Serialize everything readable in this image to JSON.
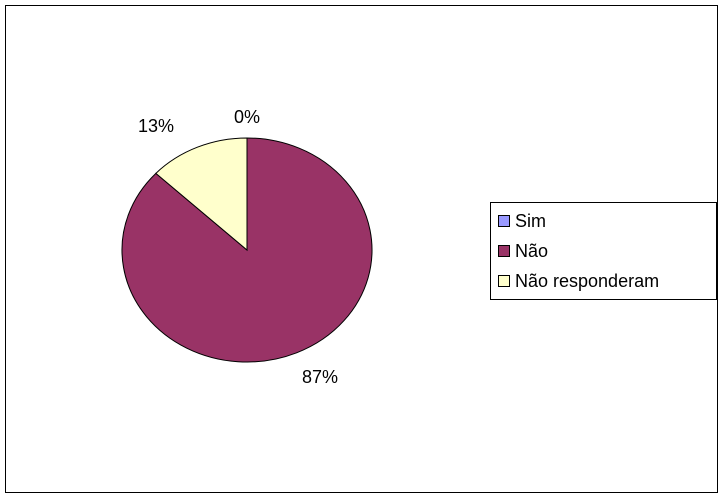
{
  "chart_data": {
    "type": "pie",
    "categories": [
      "Sim",
      "Não",
      "Não responderam"
    ],
    "values": [
      0,
      87,
      13
    ],
    "value_labels": [
      "0%",
      "87%",
      "13%"
    ],
    "colors": [
      "#9999ff",
      "#993366",
      "#ffffcc"
    ],
    "legend_position": "right"
  },
  "legend": {
    "items": [
      "Sim",
      "Não",
      "Não responderam"
    ]
  }
}
